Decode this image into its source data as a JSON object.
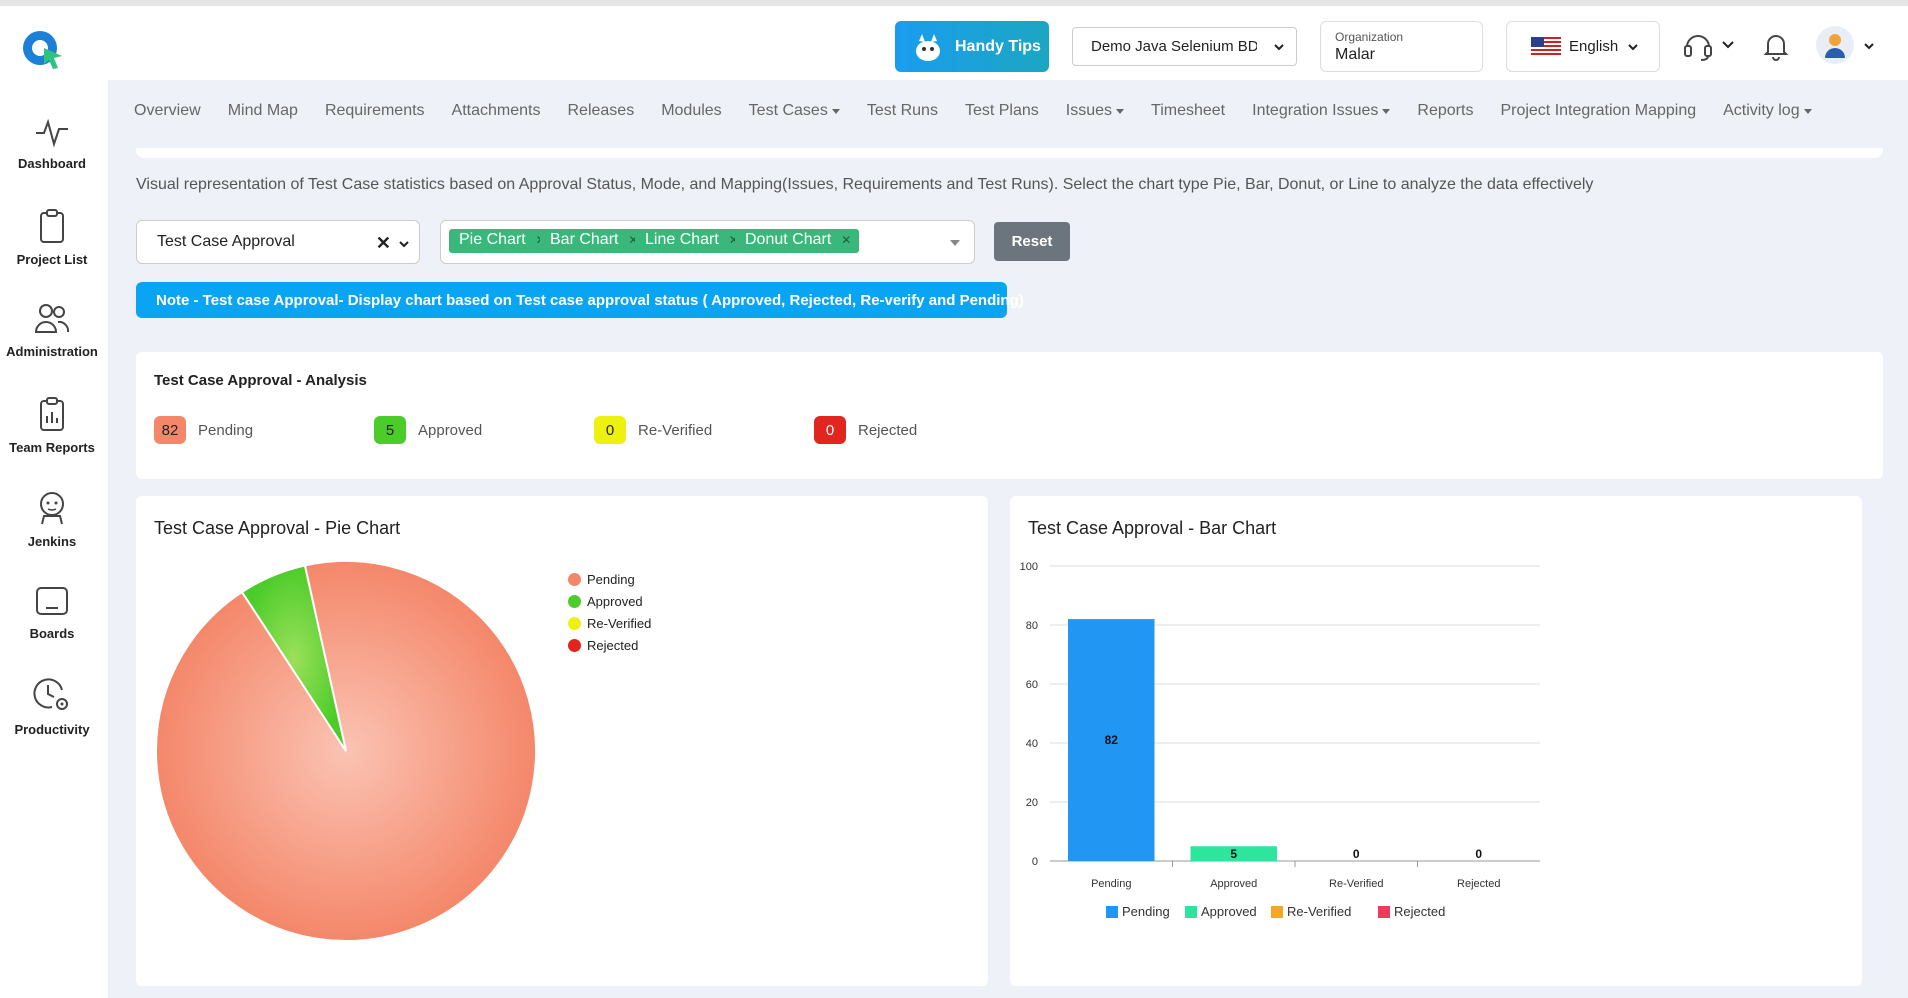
{
  "header": {
    "handy_tips": "Handy Tips",
    "project": "Demo Java Selenium BDD",
    "org_label": "Organization",
    "org_value": "Malar",
    "language": "English"
  },
  "sidebar": {
    "items": [
      {
        "label": "Dashboard",
        "icon": "activity-icon"
      },
      {
        "label": "Project List",
        "icon": "clipboard-icon"
      },
      {
        "label": "Administration",
        "icon": "users-icon"
      },
      {
        "label": "Team Reports",
        "icon": "report-icon"
      },
      {
        "label": "Jenkins",
        "icon": "jenkins-icon"
      },
      {
        "label": "Boards",
        "icon": "board-icon"
      },
      {
        "label": "Productivity",
        "icon": "clock-gear-icon"
      }
    ]
  },
  "tabs": [
    {
      "label": "Overview",
      "caret": false
    },
    {
      "label": "Mind Map",
      "caret": false
    },
    {
      "label": "Requirements",
      "caret": false
    },
    {
      "label": "Attachments",
      "caret": false
    },
    {
      "label": "Releases",
      "caret": false
    },
    {
      "label": "Modules",
      "caret": false
    },
    {
      "label": "Test Cases",
      "caret": true
    },
    {
      "label": "Test Runs",
      "caret": false
    },
    {
      "label": "Test Plans",
      "caret": false
    },
    {
      "label": "Issues",
      "caret": true
    },
    {
      "label": "Timesheet",
      "caret": false
    },
    {
      "label": "Integration Issues",
      "caret": true
    },
    {
      "label": "Reports",
      "caret": false
    },
    {
      "label": "Project Integration Mapping",
      "caret": false
    },
    {
      "label": "Activity log",
      "caret": true
    }
  ],
  "description": "Visual representation of Test Case statistics based on Approval Status, Mode, and Mapping(Issues, Requirements and Test Runs). Select the chart type Pie, Bar, Donut, or Line to analyze the data effectively",
  "filters": {
    "type_value": "Test Case Approval",
    "chips": [
      "Pie Chart",
      "Bar Chart",
      "Line Chart",
      "Donut Chart"
    ],
    "reset": "Reset"
  },
  "note": "Note - Test case Approval- Display chart based on Test case approval status ( Approved, Rejected, Re-verify and Pending)",
  "analysis": {
    "title": "Test Case Approval - Analysis",
    "stats": [
      {
        "value": "82",
        "label": "Pending",
        "color": "#f4876a"
      },
      {
        "value": "5",
        "label": "Approved",
        "color": "#4ccc2a"
      },
      {
        "value": "0",
        "label": "Re-Verified",
        "color": "#eef00f"
      },
      {
        "value": "0",
        "label": "Rejected",
        "color": "#e2261f"
      }
    ]
  },
  "pie_title": "Test Case Approval - Pie Chart",
  "bar_title": "Test Case Approval - Bar Chart",
  "chart_data": [
    {
      "type": "pie",
      "title": "Test Case Approval - Pie Chart",
      "categories": [
        "Pending",
        "Approved",
        "Re-Verified",
        "Rejected"
      ],
      "values": [
        82,
        5,
        0,
        0
      ],
      "colors": [
        "#f4876a",
        "#4ccc2a",
        "#eef00f",
        "#e2261f"
      ],
      "legend": "right"
    },
    {
      "type": "bar",
      "title": "Test Case Approval - Bar Chart",
      "categories": [
        "Pending",
        "Approved",
        "Re-Verified",
        "Rejected"
      ],
      "values": [
        82,
        5,
        0,
        0
      ],
      "colors": [
        "#2196f3",
        "#2ee59d",
        "#f5a623",
        "#ee3b5b"
      ],
      "ylim": [
        0,
        100
      ],
      "yticks": [
        0,
        20,
        40,
        60,
        80,
        100
      ],
      "grid": true,
      "legend": "bottom"
    }
  ]
}
